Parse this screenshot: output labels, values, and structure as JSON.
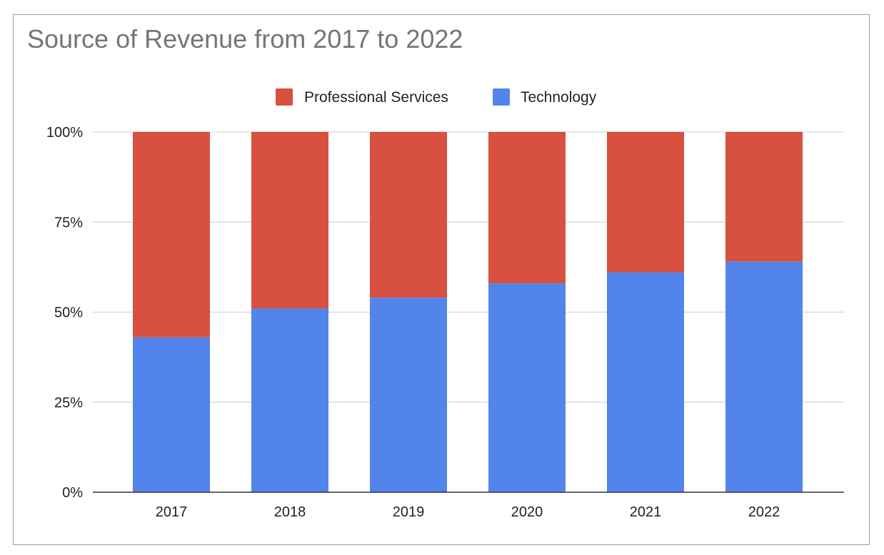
{
  "chart_data": {
    "type": "bar",
    "stacked": true,
    "percent": true,
    "title": "Source of Revenue from 2017 to 2022",
    "xlabel": "",
    "ylabel": "",
    "categories": [
      "2017",
      "2018",
      "2019",
      "2020",
      "2021",
      "2022"
    ],
    "series": [
      {
        "name": "Technology",
        "color": "#5384ec",
        "values": [
          43,
          51,
          54,
          58,
          61,
          64
        ]
      },
      {
        "name": "Professional Services",
        "color": "#d85040",
        "values": [
          57,
          49,
          46,
          42,
          39,
          36
        ]
      }
    ],
    "legend": {
      "position": "top",
      "order": [
        "Professional Services",
        "Technology"
      ]
    },
    "ylim": [
      0,
      100
    ],
    "yticks": [
      "0%",
      "25%",
      "50%",
      "75%",
      "100%"
    ],
    "gridlines": true
  }
}
